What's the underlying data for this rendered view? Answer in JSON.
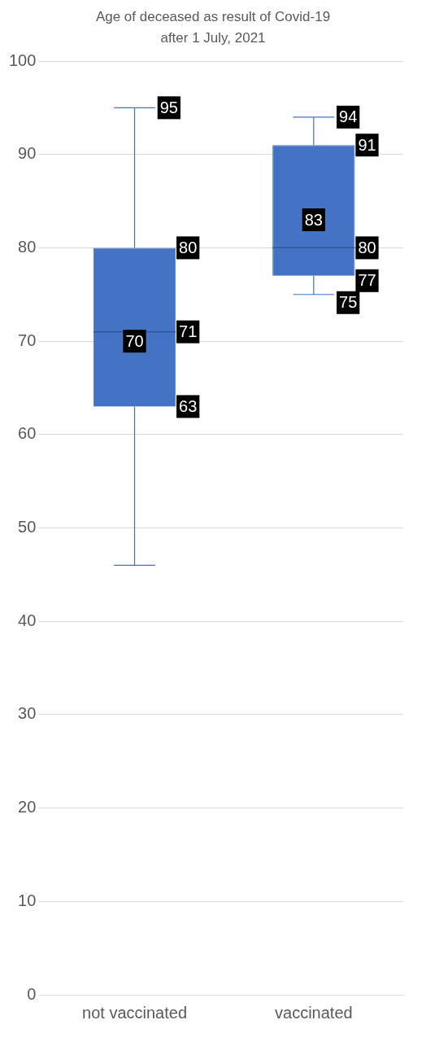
{
  "chart_data": {
    "type": "box",
    "title": "Age of deceased as result of Covid-19 after 1 July, 2021",
    "categories": [
      "not vaccinated",
      "vaccinated"
    ],
    "color": "#4472c4",
    "boxes": [
      {
        "low": 46,
        "q1": 63,
        "median": 71,
        "q3": 80,
        "high": 95,
        "mean": 70
      },
      {
        "low": 75,
        "q1": 77,
        "median": 80,
        "q3": 91,
        "high": 94,
        "mean": 83
      }
    ],
    "ylim": [
      0,
      100
    ],
    "yticks": [
      0,
      10,
      20,
      30,
      40,
      50,
      60,
      70,
      80,
      90,
      100
    ],
    "grid": "y",
    "annotations": [
      {
        "text": "95",
        "x": "not vaccinated",
        "y": 95
      },
      {
        "text": "80",
        "x": "not vaccinated",
        "y": 80
      },
      {
        "text": "71",
        "x": "not vaccinated",
        "y": 71
      },
      "70",
      {
        "text": "63",
        "x": "not vaccinated",
        "y": 63
      },
      {
        "text": "94",
        "x": "vaccinated",
        "y": 94
      },
      {
        "text": "91",
        "x": "vaccinated",
        "y": 91
      },
      "83",
      {
        "text": "80",
        "x": "vaccinated",
        "y": 80
      },
      {
        "text": "77",
        "x": "vaccinated",
        "y": 77
      },
      {
        "text": "75",
        "x": "vaccinated",
        "y": 75
      }
    ]
  }
}
